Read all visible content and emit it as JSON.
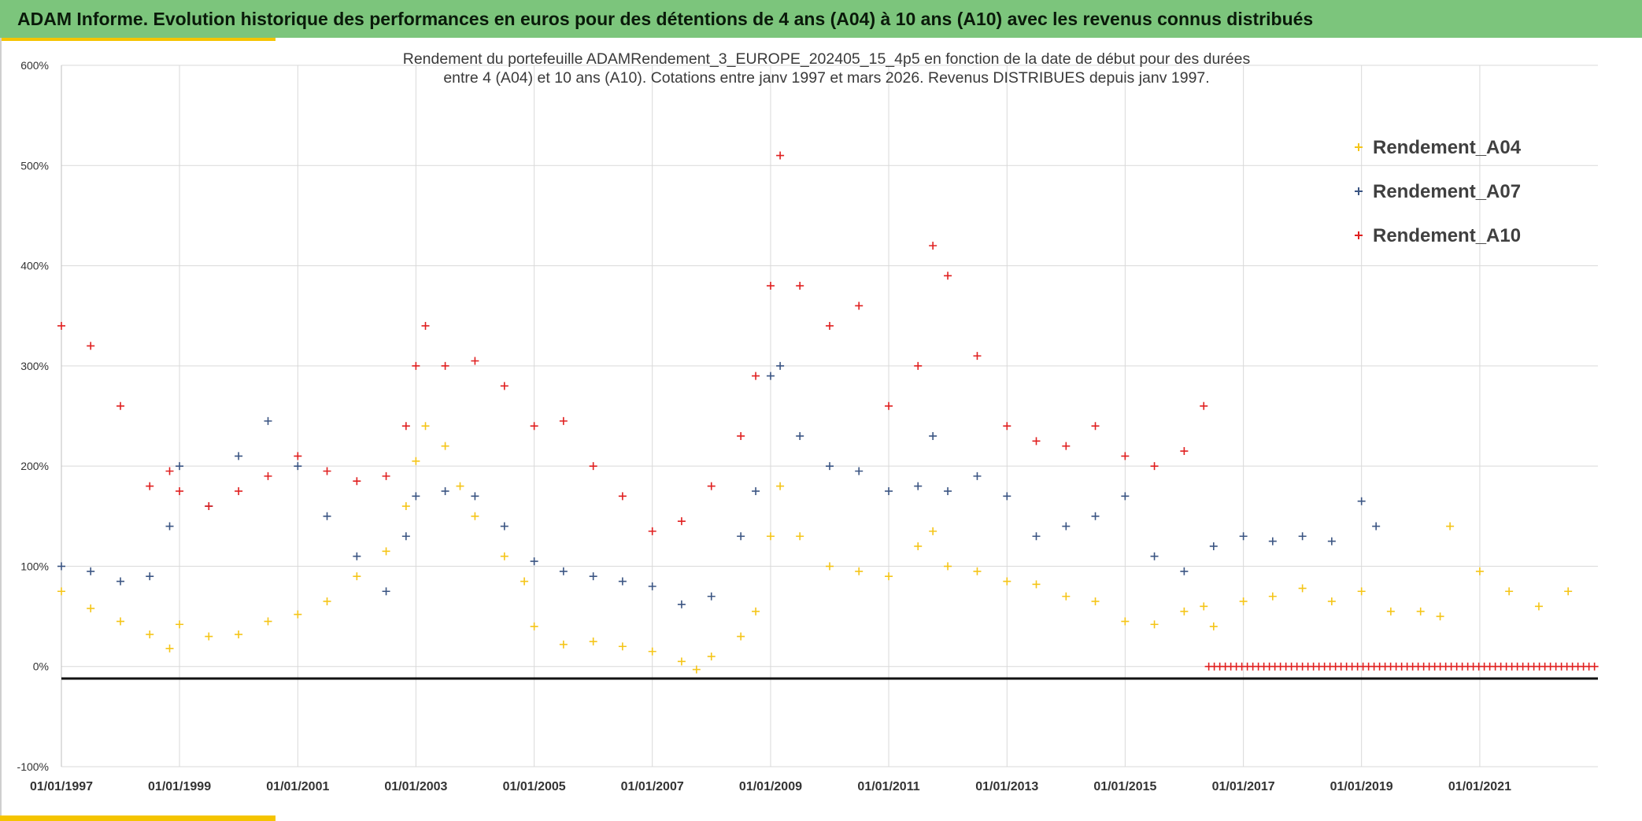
{
  "header": {
    "title": "ADAM Informe. Evolution historique des performances en euros pour des détentions de 4 ans (A04) à 10 ans (A10) avec les revenus connus distribués"
  },
  "chart_data": {
    "type": "scatter",
    "title_lines": [
      "Rendement du portefeuille ADAMRendement_3_EUROPE_202405_15_4p5  en fonction de la date de début pour des durées",
      "entre 4 (A04) et 10 ans (A10). Cotations entre janv 1997 et mars 2026. Revenus DISTRIBUES depuis janv 1997."
    ],
    "marker": "+",
    "x_type": "date",
    "x_range": [
      "1997-01-01",
      "2023-01-01"
    ],
    "x_tick_labels": [
      "01/01/1997",
      "01/01/1999",
      "01/01/2001",
      "01/01/2003",
      "01/01/2005",
      "01/01/2007",
      "01/01/2009",
      "01/01/2011",
      "01/01/2013",
      "01/01/2015",
      "01/01/2017",
      "01/01/2019",
      "01/01/2021"
    ],
    "y_range": [
      -100,
      600
    ],
    "y_unit": "%",
    "y_tick_labels": [
      "-100%",
      "0%",
      "100%",
      "200%",
      "300%",
      "400%",
      "500%",
      "600%"
    ],
    "grid": true,
    "legend_position": "top-right",
    "baseline_y": -12,
    "series": [
      {
        "name": "Rendement_A04",
        "color": "#f5c518",
        "points": [
          [
            "1997-01",
            75
          ],
          [
            "1997-07",
            58
          ],
          [
            "1998-01",
            45
          ],
          [
            "1998-07",
            32
          ],
          [
            "1998-11",
            18
          ],
          [
            "1999-01",
            42
          ],
          [
            "1999-07",
            30
          ],
          [
            "2000-01",
            32
          ],
          [
            "2000-07",
            45
          ],
          [
            "2001-01",
            52
          ],
          [
            "2001-07",
            65
          ],
          [
            "2002-01",
            90
          ],
          [
            "2002-07",
            115
          ],
          [
            "2002-11",
            160
          ],
          [
            "2003-01",
            205
          ],
          [
            "2003-03",
            240
          ],
          [
            "2003-07",
            220
          ],
          [
            "2003-10",
            180
          ],
          [
            "2004-01",
            150
          ],
          [
            "2004-07",
            110
          ],
          [
            "2004-11",
            85
          ],
          [
            "2005-01",
            40
          ],
          [
            "2005-07",
            22
          ],
          [
            "2006-01",
            25
          ],
          [
            "2006-07",
            20
          ],
          [
            "2007-01",
            15
          ],
          [
            "2007-07",
            5
          ],
          [
            "2007-10",
            -3
          ],
          [
            "2008-01",
            10
          ],
          [
            "2008-07",
            30
          ],
          [
            "2008-10",
            55
          ],
          [
            "2009-01",
            130
          ],
          [
            "2009-03",
            180
          ],
          [
            "2009-07",
            130
          ],
          [
            "2010-01",
            100
          ],
          [
            "2010-07",
            95
          ],
          [
            "2011-01",
            90
          ],
          [
            "2011-07",
            120
          ],
          [
            "2011-10",
            135
          ],
          [
            "2012-01",
            100
          ],
          [
            "2012-07",
            95
          ],
          [
            "2013-01",
            85
          ],
          [
            "2013-07",
            82
          ],
          [
            "2014-01",
            70
          ],
          [
            "2014-07",
            65
          ],
          [
            "2015-01",
            45
          ],
          [
            "2015-07",
            42
          ],
          [
            "2016-01",
            55
          ],
          [
            "2016-05",
            60
          ],
          [
            "2016-07",
            40
          ],
          [
            "2017-01",
            65
          ],
          [
            "2017-07",
            70
          ],
          [
            "2018-01",
            78
          ],
          [
            "2018-07",
            65
          ],
          [
            "2019-01",
            75
          ],
          [
            "2019-07",
            55
          ],
          [
            "2020-01",
            55
          ],
          [
            "2020-05",
            50
          ],
          [
            "2020-07",
            140
          ],
          [
            "2021-01",
            95
          ],
          [
            "2021-07",
            75
          ],
          [
            "2022-01",
            60
          ],
          [
            "2022-07",
            75
          ]
        ]
      },
      {
        "name": "Rendement_A07",
        "color": "#3b5583",
        "points": [
          [
            "1997-01",
            100
          ],
          [
            "1997-07",
            95
          ],
          [
            "1998-01",
            85
          ],
          [
            "1998-07",
            90
          ],
          [
            "1998-11",
            140
          ],
          [
            "1999-01",
            200
          ],
          [
            "1999-07",
            160
          ],
          [
            "2000-01",
            210
          ],
          [
            "2000-07",
            245
          ],
          [
            "2001-01",
            200
          ],
          [
            "2001-07",
            150
          ],
          [
            "2002-01",
            110
          ],
          [
            "2002-07",
            75
          ],
          [
            "2002-11",
            130
          ],
          [
            "2003-01",
            170
          ],
          [
            "2003-07",
            175
          ],
          [
            "2004-01",
            170
          ],
          [
            "2004-07",
            140
          ],
          [
            "2005-01",
            105
          ],
          [
            "2005-07",
            95
          ],
          [
            "2006-01",
            90
          ],
          [
            "2006-07",
            85
          ],
          [
            "2007-01",
            80
          ],
          [
            "2007-07",
            62
          ],
          [
            "2008-01",
            70
          ],
          [
            "2008-07",
            130
          ],
          [
            "2008-10",
            175
          ],
          [
            "2009-01",
            290
          ],
          [
            "2009-03",
            300
          ],
          [
            "2009-07",
            230
          ],
          [
            "2010-01",
            200
          ],
          [
            "2010-07",
            195
          ],
          [
            "2011-01",
            175
          ],
          [
            "2011-07",
            180
          ],
          [
            "2011-10",
            230
          ],
          [
            "2012-01",
            175
          ],
          [
            "2012-07",
            190
          ],
          [
            "2013-01",
            170
          ],
          [
            "2013-07",
            130
          ],
          [
            "2014-01",
            140
          ],
          [
            "2014-07",
            150
          ],
          [
            "2015-01",
            170
          ],
          [
            "2015-07",
            110
          ],
          [
            "2016-01",
            95
          ],
          [
            "2016-07",
            120
          ],
          [
            "2017-01",
            130
          ],
          [
            "2017-07",
            125
          ],
          [
            "2018-01",
            130
          ],
          [
            "2018-07",
            125
          ],
          [
            "2019-01",
            165
          ],
          [
            "2019-04",
            140
          ]
        ]
      },
      {
        "name": "Rendement_A10",
        "color": "#e02020",
        "points": [
          [
            "1997-01",
            340
          ],
          [
            "1997-07",
            320
          ],
          [
            "1998-01",
            260
          ],
          [
            "1998-07",
            180
          ],
          [
            "1998-11",
            195
          ],
          [
            "1999-01",
            175
          ],
          [
            "1999-07",
            160
          ],
          [
            "2000-01",
            175
          ],
          [
            "2000-07",
            190
          ],
          [
            "2001-01",
            210
          ],
          [
            "2001-07",
            195
          ],
          [
            "2002-01",
            185
          ],
          [
            "2002-07",
            190
          ],
          [
            "2002-11",
            240
          ],
          [
            "2003-01",
            300
          ],
          [
            "2003-03",
            340
          ],
          [
            "2003-07",
            300
          ],
          [
            "2004-01",
            305
          ],
          [
            "2004-07",
            280
          ],
          [
            "2005-01",
            240
          ],
          [
            "2005-07",
            245
          ],
          [
            "2006-01",
            200
          ],
          [
            "2006-07",
            170
          ],
          [
            "2007-01",
            135
          ],
          [
            "2007-07",
            145
          ],
          [
            "2008-01",
            180
          ],
          [
            "2008-07",
            230
          ],
          [
            "2008-10",
            290
          ],
          [
            "2009-01",
            380
          ],
          [
            "2009-03",
            510
          ],
          [
            "2009-07",
            380
          ],
          [
            "2010-01",
            340
          ],
          [
            "2010-07",
            360
          ],
          [
            "2011-01",
            260
          ],
          [
            "2011-07",
            300
          ],
          [
            "2011-10",
            420
          ],
          [
            "2012-01",
            390
          ],
          [
            "2012-07",
            310
          ],
          [
            "2013-01",
            240
          ],
          [
            "2013-07",
            225
          ],
          [
            "2014-01",
            220
          ],
          [
            "2014-07",
            240
          ],
          [
            "2015-01",
            210
          ],
          [
            "2015-07",
            200
          ],
          [
            "2016-01",
            215
          ],
          [
            "2016-05",
            260
          ]
        ]
      }
    ],
    "zero_series_range": [
      "2016-06-01",
      "2023-01-01"
    ],
    "zero_series_color": "#e02020"
  }
}
